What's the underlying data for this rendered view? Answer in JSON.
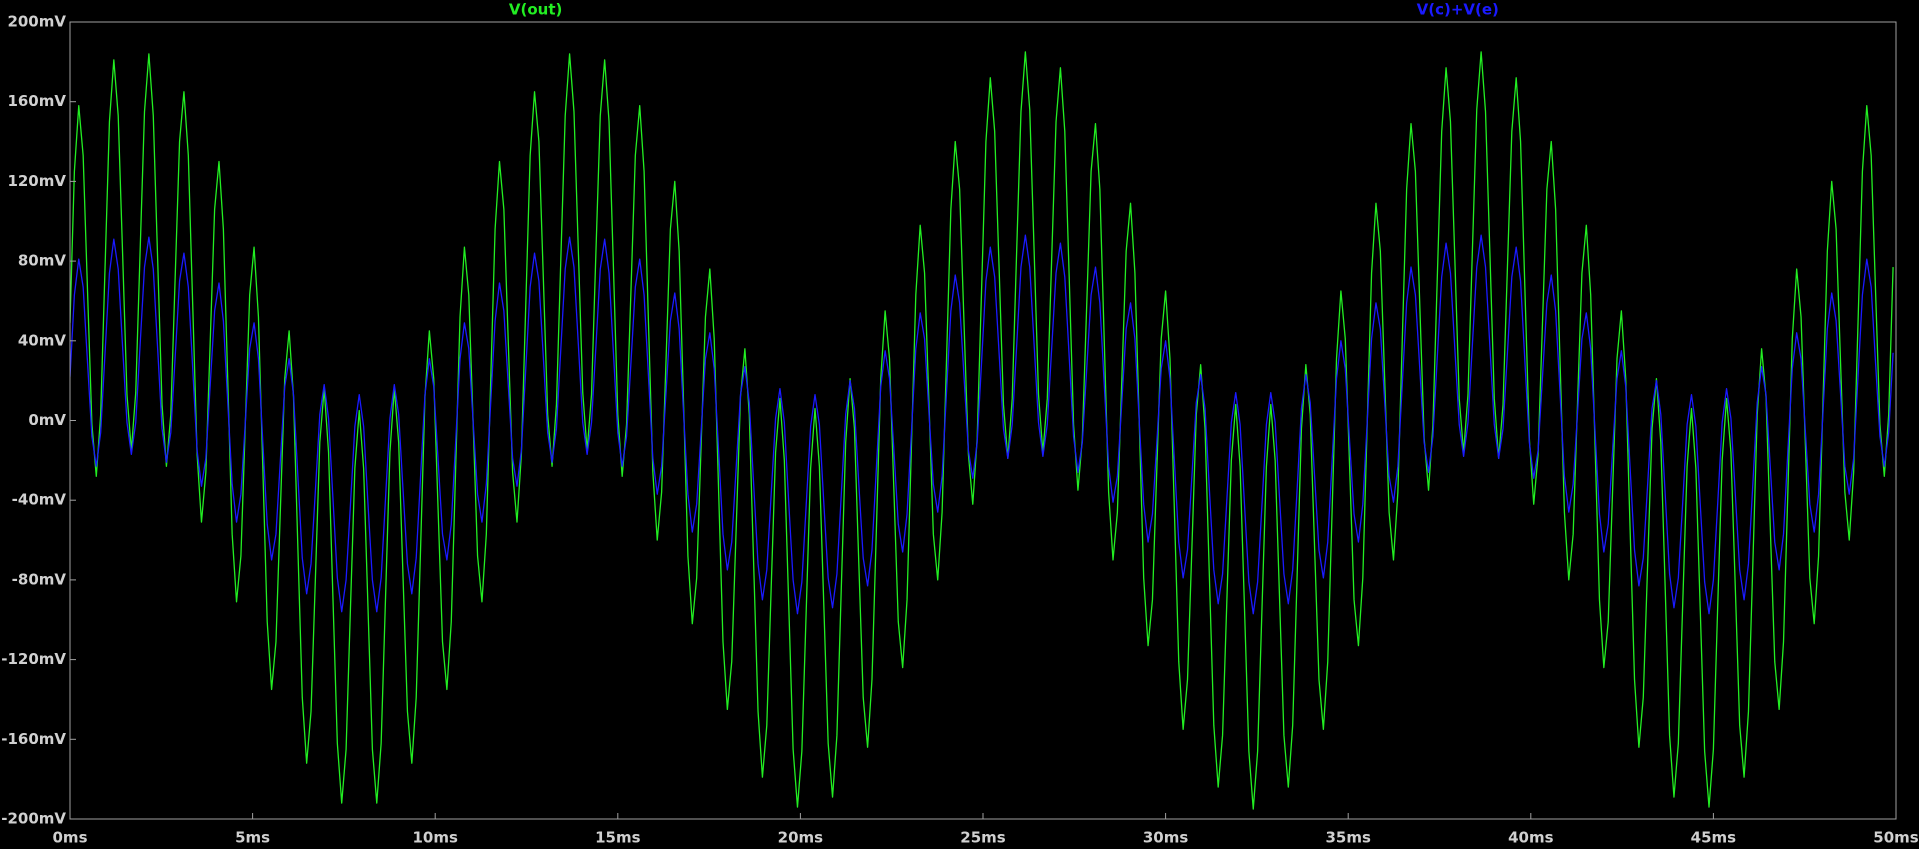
{
  "chart_data": {
    "type": "line",
    "x": [
      0,
      0.12,
      0.24,
      0.36,
      0.48,
      0.6,
      0.72,
      0.84,
      0.96,
      1.08,
      1.2,
      1.32,
      1.44,
      1.56,
      1.68,
      1.8,
      1.92,
      2.04,
      2.16,
      2.28,
      2.4,
      2.52,
      2.64,
      2.76,
      2.88,
      3,
      3.12,
      3.24,
      3.36,
      3.48,
      3.6,
      3.72,
      3.84,
      3.96,
      4.08,
      4.2,
      4.32,
      4.44,
      4.56,
      4.68,
      4.8,
      4.92,
      5.04,
      5.16,
      5.28,
      5.4,
      5.52,
      5.64,
      5.76,
      5.88,
      6,
      6.12,
      6.24,
      6.36,
      6.48,
      6.6,
      6.72,
      6.84,
      6.96,
      7.08,
      7.2,
      7.32,
      7.44,
      7.56,
      7.68,
      7.8,
      7.92,
      8.04,
      8.16,
      8.28,
      8.4,
      8.52,
      8.64,
      8.76,
      8.88,
      9,
      9.12,
      9.24,
      9.36,
      9.48,
      9.6,
      9.72,
      9.84,
      9.96,
      10.08,
      10.2,
      10.32,
      10.44,
      10.56,
      10.68,
      10.8,
      10.92,
      11.04,
      11.16,
      11.28,
      11.4,
      11.52,
      11.64,
      11.76,
      11.88,
      12,
      12.12,
      12.24,
      12.36,
      12.48,
      12.6,
      12.72,
      12.84,
      12.96,
      13.08,
      13.2,
      13.32,
      13.44,
      13.56,
      13.68,
      13.8,
      13.92,
      14.04,
      14.16,
      14.28,
      14.4,
      14.52,
      14.64,
      14.76,
      14.88,
      15,
      15.12,
      15.24,
      15.36,
      15.48,
      15.6,
      15.72,
      15.84,
      15.96,
      16.08,
      16.2,
      16.32,
      16.44,
      16.56,
      16.68,
      16.8,
      16.92,
      17.04,
      17.16,
      17.28,
      17.4,
      17.52,
      17.64,
      17.76,
      17.88,
      18,
      18.12,
      18.24,
      18.36,
      18.48,
      18.6,
      18.72,
      18.84,
      18.96,
      19.08,
      19.2,
      19.32,
      19.44,
      19.56,
      19.68,
      19.8,
      19.92,
      20.04,
      20.16,
      20.28,
      20.4,
      20.52,
      20.64,
      20.76,
      20.88,
      21,
      21.12,
      21.24,
      21.36,
      21.48,
      21.6,
      21.72,
      21.84,
      21.96,
      22.08,
      22.2,
      22.32,
      22.44,
      22.56,
      22.68,
      22.8,
      22.92,
      23.04,
      23.16,
      23.28,
      23.4,
      23.52,
      23.64,
      23.76,
      23.88,
      24,
      24.12,
      24.24,
      24.36,
      24.48,
      24.6,
      24.72,
      24.84,
      24.96,
      25.08,
      25.2,
      25.32,
      25.44,
      25.56,
      25.68,
      25.8,
      25.92,
      26.04,
      26.16,
      26.28,
      26.4,
      26.52,
      26.64,
      26.76,
      26.88,
      27,
      27.12,
      27.24,
      27.36,
      27.48,
      27.6,
      27.72,
      27.84,
      27.96,
      28.08,
      28.2,
      28.32,
      28.44,
      28.56,
      28.68,
      28.8,
      28.92,
      29.04,
      29.16,
      29.28,
      29.4,
      29.52,
      29.64,
      29.76,
      29.88,
      30,
      30.12,
      30.24,
      30.36,
      30.48,
      30.6,
      30.72,
      30.84,
      30.96,
      31.08,
      31.2,
      31.32,
      31.44,
      31.56,
      31.68,
      31.8,
      31.92,
      32.04,
      32.16,
      32.28,
      32.4,
      32.52,
      32.64,
      32.76,
      32.88,
      33,
      33.12,
      33.24,
      33.36,
      33.48,
      33.6,
      33.72,
      33.84,
      33.96,
      34.08,
      34.2,
      34.32,
      34.44,
      34.56,
      34.68,
      34.8,
      34.92,
      35.04,
      35.16,
      35.28,
      35.4,
      35.52,
      35.64,
      35.76,
      35.88,
      36,
      36.12,
      36.24,
      36.36,
      36.48,
      36.6,
      36.72,
      36.84,
      36.96,
      37.08,
      37.2,
      37.32,
      37.44,
      37.56,
      37.68,
      37.8,
      37.92,
      38.04,
      38.16,
      38.28,
      38.4,
      38.52,
      38.64,
      38.76,
      38.88,
      39,
      39.12,
      39.24,
      39.36,
      39.48,
      39.6,
      39.72,
      39.84,
      39.96,
      40.08,
      40.2,
      40.32,
      40.44,
      40.56,
      40.68,
      40.8,
      40.92,
      41.04,
      41.16,
      41.28,
      41.4,
      41.52,
      41.64,
      41.76,
      41.88,
      42,
      42.12,
      42.24,
      42.36,
      42.48,
      42.6,
      42.72,
      42.84,
      42.96,
      43.08,
      43.2,
      43.32,
      43.44,
      43.56,
      43.68,
      43.8,
      43.92,
      44.04,
      44.16,
      44.28,
      44.4,
      44.52,
      44.64,
      44.76,
      44.88,
      45,
      45.12,
      45.24,
      45.36,
      45.48,
      45.6,
      45.72,
      45.84,
      45.96,
      46.08,
      46.2,
      46.32,
      46.44,
      46.56,
      46.68,
      46.8,
      46.92,
      47.04,
      47.16,
      47.28,
      47.4,
      47.52,
      47.64,
      47.76,
      47.88,
      48,
      48.12,
      48.24,
      48.36,
      48.48,
      48.6,
      48.72,
      48.84,
      48.96,
      49.08,
      49.2,
      49.32,
      49.44,
      49.56,
      49.68,
      49.8,
      49.92
    ],
    "series": [
      {
        "name": "V(out)",
        "color": "#22ee22",
        "values": [
          49,
          125,
          158,
          133,
          65,
          -2,
          -28,
          3,
          77,
          150,
          181,
          153,
          84,
          13,
          -15,
          14,
          85,
          155,
          184,
          153,
          81,
          8,
          -23,
          3,
          72,
          140,
          165,
          133,
          58,
          -17,
          -51,
          -26,
          40,
          106,
          130,
          96,
          20,
          -57,
          -91,
          -68,
          -2,
          63,
          87,
          52,
          -24,
          -101,
          -135,
          -111,
          -45,
          21,
          45,
          12,
          -64,
          -139,
          -172,
          -146,
          -79,
          -11,
          16,
          -16,
          -89,
          -162,
          -192,
          -165,
          -94,
          -24,
          5,
          -24,
          -94,
          -165,
          -192,
          -162,
          -89,
          -16,
          16,
          -11,
          -79,
          -146,
          -172,
          -139,
          -64,
          12,
          45,
          21,
          -45,
          -111,
          -135,
          -101,
          -24,
          52,
          87,
          63,
          -2,
          -68,
          -91,
          -57,
          20,
          96,
          130,
          106,
          40,
          -26,
          -51,
          -17,
          58,
          133,
          165,
          140,
          72,
          3,
          -23,
          8,
          81,
          153,
          184,
          155,
          85,
          14,
          -15,
          13,
          84,
          153,
          181,
          150,
          77,
          3,
          -28,
          -2,
          65,
          133,
          158,
          125,
          49,
          -26,
          -60,
          -36,
          30,
          96,
          120,
          85,
          9,
          -68,
          -102,
          -79,
          -13,
          52,
          76,
          41,
          -35,
          -111,
          -145,
          -121,
          -55,
          12,
          36,
          3,
          -72,
          -146,
          -179,
          -153,
          -84,
          -16,
          11,
          -20,
          -92,
          -165,
          -194,
          -166,
          -95,
          -24,
          6,
          -23,
          -92,
          -162,
          -189,
          -158,
          -84,
          -11,
          21,
          -4,
          -72,
          -139,
          -164,
          -130,
          -55,
          21,
          55,
          31,
          -35,
          -101,
          -124,
          -90,
          -13,
          63,
          98,
          74,
          9,
          -57,
          -80,
          -46,
          30,
          106,
          140,
          116,
          49,
          -17,
          -42,
          -9,
          65,
          140,
          172,
          145,
          77,
          8,
          -19,
          11,
          84,
          155,
          185,
          156,
          85,
          13,
          -16,
          11,
          81,
          150,
          177,
          145,
          72,
          -2,
          -35,
          -9,
          58,
          125,
          149,
          116,
          40,
          -36,
          -70,
          -46,
          20,
          85,
          109,
          74,
          -2,
          -79,
          -113,
          -90,
          -24,
          41,
          65,
          31,
          -45,
          -121,
          -155,
          -130,
          -64,
          3,
          28,
          -4,
          -79,
          -153,
          -184,
          -158,
          -89,
          -20,
          8,
          -23,
          -94,
          -166,
          -195,
          -166,
          -94,
          -23,
          8,
          -20,
          -89,
          -158,
          -184,
          -153,
          -79,
          -4,
          28,
          3,
          -64,
          -130,
          -155,
          -121,
          -45,
          31,
          65,
          41,
          -24,
          -90,
          -113,
          -79,
          -2,
          74,
          109,
          85,
          20,
          -46,
          -70,
          -36,
          40,
          116,
          149,
          125,
          58,
          -9,
          -35,
          -2,
          72,
          145,
          177,
          150,
          81,
          11,
          -16,
          13,
          85,
          156,
          185,
          155,
          84,
          11,
          -19,
          8,
          77,
          145,
          172,
          140,
          65,
          -9,
          -42,
          -17,
          49,
          116,
          140,
          106,
          30,
          -46,
          -80,
          -57,
          9,
          74,
          98,
          63,
          -13,
          -90,
          -124,
          -101,
          -35,
          31,
          55,
          21,
          -55,
          -130,
          -164,
          -139,
          -72,
          -4,
          21,
          -11,
          -84,
          -158,
          -189,
          -162,
          -92,
          -23,
          6,
          -24,
          -95,
          -166,
          -194,
          -165,
          -92,
          -20,
          11,
          -16,
          -84,
          -153,
          -179,
          -146,
          -72,
          3,
          36,
          12,
          -55,
          -121,
          -145,
          -111,
          -35,
          41,
          76,
          52,
          -13,
          -79,
          -102,
          -68,
          9,
          85,
          120,
          96,
          30,
          -36,
          -60,
          -26,
          49,
          125,
          158,
          133,
          65,
          -2,
          -28,
          3,
          77
        ]
      },
      {
        "name": "V(c)+V(e)",
        "color": "#1a1aff",
        "values": [
          22,
          63,
          81,
          67,
          29,
          -8,
          -23,
          -6,
          34,
          74,
          91,
          76,
          37,
          -1,
          -17,
          -1,
          38,
          77,
          92,
          76,
          36,
          -4,
          -21,
          -6,
          32,
          70,
          84,
          67,
          26,
          -15,
          -33,
          -19,
          18,
          55,
          69,
          50,
          9,
          -32,
          -51,
          -37,
          -1,
          36,
          49,
          31,
          -11,
          -52,
          -70,
          -57,
          -20,
          17,
          31,
          13,
          -28,
          -69,
          -87,
          -72,
          -35,
          3,
          18,
          1,
          -39,
          -79,
          -96,
          -80,
          -42,
          -3,
          13,
          -3,
          -42,
          -80,
          -96,
          -79,
          -39,
          1,
          18,
          3,
          -35,
          -72,
          -87,
          -69,
          -28,
          13,
          31,
          17,
          -20,
          -57,
          -70,
          -52,
          -11,
          31,
          49,
          36,
          -1,
          -37,
          -51,
          -32,
          9,
          50,
          69,
          55,
          18,
          -19,
          -33,
          -15,
          26,
          67,
          84,
          70,
          32,
          -6,
          -21,
          -4,
          36,
          76,
          92,
          77,
          38,
          -1,
          -17,
          -1,
          37,
          76,
          91,
          74,
          34,
          -6,
          -23,
          -8,
          29,
          67,
          81,
          63,
          22,
          -19,
          -37,
          -23,
          14,
          50,
          64,
          46,
          4,
          -37,
          -56,
          -42,
          -6,
          31,
          44,
          26,
          -15,
          -57,
          -75,
          -61,
          -24,
          13,
          27,
          9,
          -32,
          -72,
          -90,
          -75,
          -37,
          1,
          16,
          -1,
          -41,
          -80,
          -97,
          -81,
          -42,
          -3,
          13,
          -2,
          -41,
          -79,
          -94,
          -77,
          -37,
          3,
          20,
          6,
          -32,
          -69,
          -83,
          -65,
          -24,
          17,
          35,
          21,
          -15,
          -52,
          -66,
          -47,
          -6,
          36,
          54,
          41,
          4,
          -32,
          -46,
          -28,
          14,
          55,
          73,
          59,
          22,
          -15,
          -29,
          -11,
          29,
          70,
          87,
          72,
          34,
          -4,
          -19,
          -2,
          37,
          77,
          93,
          77,
          38,
          -1,
          -18,
          -2,
          36,
          74,
          89,
          72,
          32,
          -8,
          -26,
          -11,
          26,
          63,
          77,
          59,
          18,
          -23,
          -41,
          -28,
          9,
          46,
          59,
          41,
          -1,
          -42,
          -61,
          -47,
          -11,
          26,
          40,
          21,
          -20,
          -61,
          -79,
          -65,
          -28,
          9,
          23,
          6,
          -35,
          -75,
          -92,
          -77,
          -39,
          -1,
          14,
          -2,
          -42,
          -81,
          -97,
          -81,
          -42,
          -2,
          14,
          -1,
          -39,
          -77,
          -92,
          -75,
          -35,
          6,
          23,
          9,
          -28,
          -65,
          -79,
          -61,
          -20,
          21,
          40,
          26,
          -11,
          -47,
          -61,
          -42,
          -1,
          41,
          59,
          46,
          9,
          -28,
          -41,
          -23,
          18,
          59,
          77,
          63,
          26,
          -11,
          -26,
          -8,
          32,
          72,
          89,
          74,
          36,
          -2,
          -18,
          -1,
          38,
          77,
          93,
          77,
          37,
          -2,
          -19,
          -4,
          34,
          72,
          87,
          70,
          29,
          -11,
          -29,
          -15,
          22,
          59,
          73,
          55,
          14,
          -28,
          -46,
          -32,
          4,
          41,
          54,
          36,
          -6,
          -47,
          -66,
          -52,
          -15,
          21,
          35,
          17,
          -24,
          -65,
          -83,
          -69,
          -32,
          6,
          20,
          3,
          -37,
          -77,
          -94,
          -79,
          -41,
          -2,
          13,
          -3,
          -42,
          -81,
          -97,
          -80,
          -41,
          -1,
          16,
          1,
          -37,
          -75,
          -90,
          -72,
          -32,
          9,
          27,
          13,
          -24,
          -61,
          -75,
          -57,
          -15,
          26,
          44,
          31,
          -6,
          -42,
          -56,
          -37,
          4,
          46,
          64,
          50,
          14,
          -23,
          -37,
          -19,
          22,
          63,
          81,
          67,
          29,
          -8,
          -23,
          -6,
          34
        ]
      }
    ],
    "xlim": [
      0,
      50
    ],
    "xticks": [
      {
        "value": 0,
        "label": "0ms"
      },
      {
        "value": 5,
        "label": "5ms"
      },
      {
        "value": 10,
        "label": "10ms"
      },
      {
        "value": 15,
        "label": "15ms"
      },
      {
        "value": 20,
        "label": "20ms"
      },
      {
        "value": 25,
        "label": "25ms"
      },
      {
        "value": 30,
        "label": "30ms"
      },
      {
        "value": 35,
        "label": "35ms"
      },
      {
        "value": 40,
        "label": "40ms"
      },
      {
        "value": 45,
        "label": "45ms"
      },
      {
        "value": 50,
        "label": "50ms"
      }
    ],
    "ylim": [
      -200,
      200
    ],
    "yticks": [
      {
        "value": -200,
        "label": "-200mV"
      },
      {
        "value": -160,
        "label": "-160mV"
      },
      {
        "value": -120,
        "label": "-120mV"
      },
      {
        "value": -80,
        "label": "-80mV"
      },
      {
        "value": -40,
        "label": "-40mV"
      },
      {
        "value": 0,
        "label": "0mV"
      },
      {
        "value": 40,
        "label": "40mV"
      },
      {
        "value": 80,
        "label": "80mV"
      },
      {
        "value": 120,
        "label": "120mV"
      },
      {
        "value": 160,
        "label": "160mV"
      },
      {
        "value": 200,
        "label": "200mV"
      }
    ],
    "grid": false
  }
}
